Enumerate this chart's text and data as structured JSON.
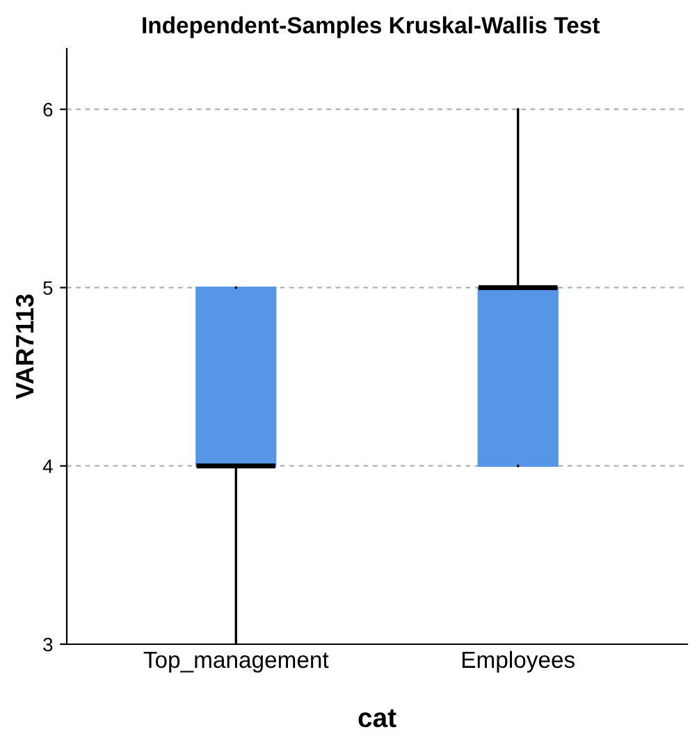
{
  "chart_data": {
    "type": "box",
    "title": "Independent-Samples Kruskal-Wallis Test",
    "xlabel": "cat",
    "ylabel": "VAR7113",
    "categories": [
      "Top_management",
      "Employees"
    ],
    "boxes": [
      {
        "low": 3,
        "q1": 4,
        "median": 4,
        "q3": 5,
        "high": 5
      },
      {
        "low": 4,
        "q1": 4,
        "median": 5,
        "q3": 5,
        "high": 6
      }
    ],
    "color": "#5596e6",
    "ylim": [
      3,
      6.34
    ],
    "yticks": [
      3,
      4,
      5,
      6
    ],
    "grid": "y",
    "legend": false
  }
}
